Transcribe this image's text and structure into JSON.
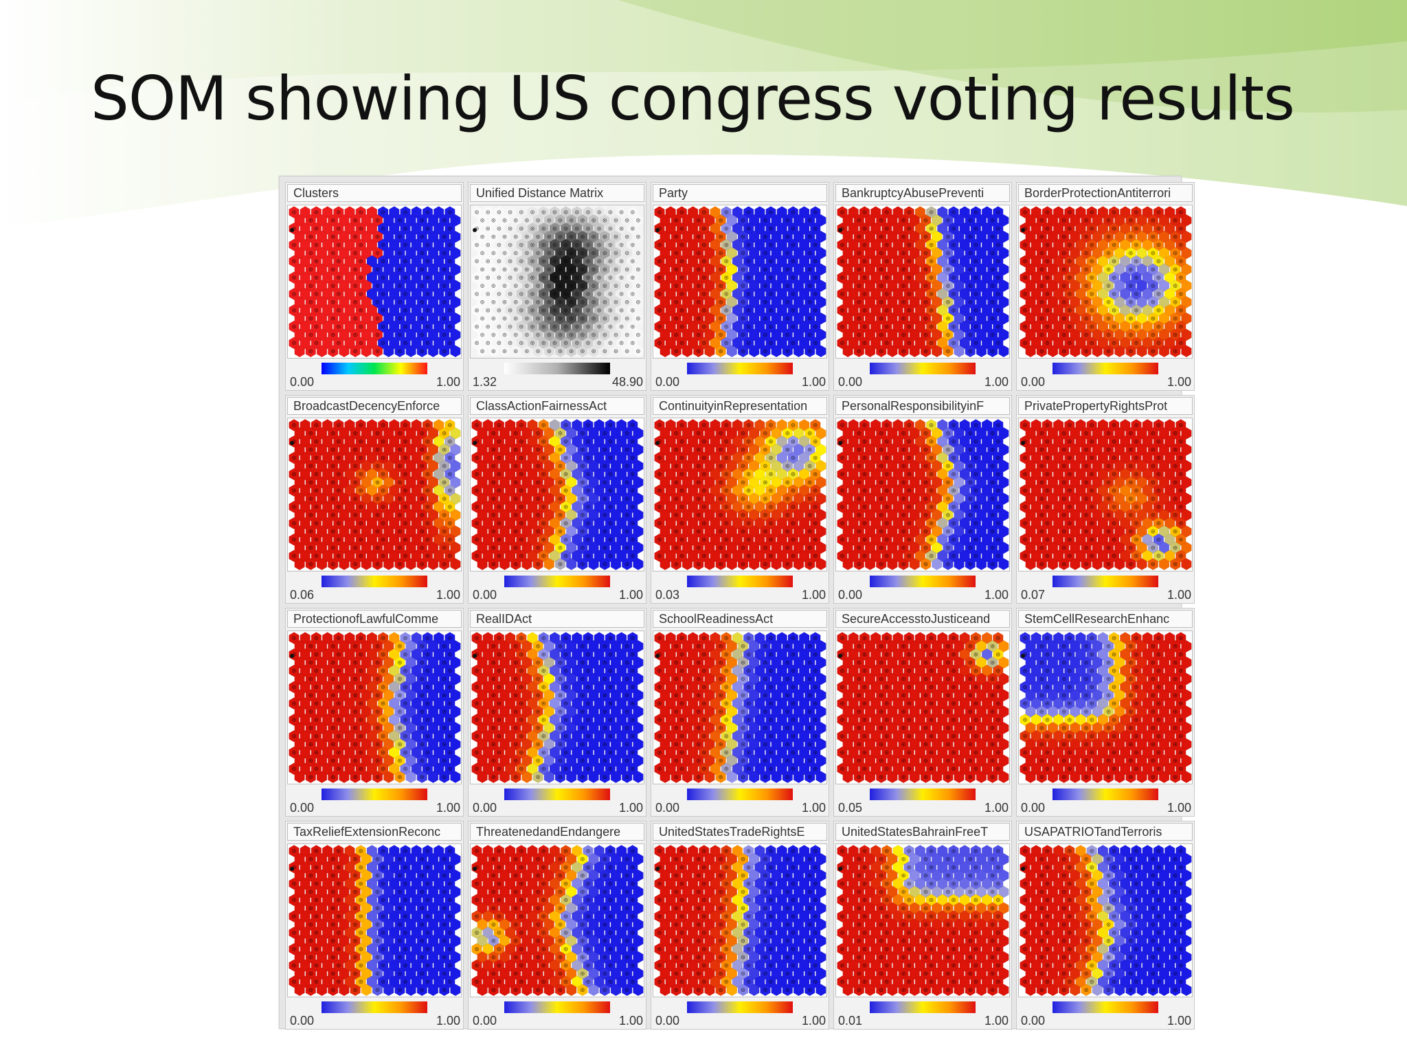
{
  "slide": {
    "title": "SOM showing US congress voting results"
  },
  "colors": {
    "title_text": "#111111",
    "background_green": "#b7d98a",
    "low": "#1a1aff",
    "mid": "#ffff00",
    "high": "#e01010"
  },
  "panels": [
    {
      "title": "Clusters",
      "min": "0.00",
      "max": "1.00",
      "scale": "rainbow"
    },
    {
      "title": "Unified Distance Matrix",
      "min": "1.32",
      "max": "48.90",
      "scale": "gray"
    },
    {
      "title": "Party",
      "min": "0.00",
      "max": "1.00",
      "scale": "heat"
    },
    {
      "title": "BankruptcyAbusePreventi",
      "min": "0.00",
      "max": "1.00",
      "scale": "heat"
    },
    {
      "title": "BorderProtectionAntiterrori",
      "min": "0.00",
      "max": "1.00",
      "scale": "heat"
    },
    {
      "title": "BroadcastDecencyEnforce",
      "min": "0.06",
      "max": "1.00",
      "scale": "heat"
    },
    {
      "title": "ClassActionFairnessAct",
      "min": "0.00",
      "max": "1.00",
      "scale": "heat"
    },
    {
      "title": "ContinuityinRepresentation",
      "min": "0.03",
      "max": "1.00",
      "scale": "heat"
    },
    {
      "title": "PersonalResponsibilityinF",
      "min": "0.00",
      "max": "1.00",
      "scale": "heat"
    },
    {
      "title": "PrivatePropertyRightsProt",
      "min": "0.07",
      "max": "1.00",
      "scale": "heat"
    },
    {
      "title": "ProtectionofLawfulComme",
      "min": "0.00",
      "max": "1.00",
      "scale": "heat"
    },
    {
      "title": "RealIDAct",
      "min": "0.00",
      "max": "1.00",
      "scale": "heat"
    },
    {
      "title": "SchoolReadinessAct",
      "min": "0.00",
      "max": "1.00",
      "scale": "heat"
    },
    {
      "title": "SecureAccesstoJusticeand",
      "min": "0.05",
      "max": "1.00",
      "scale": "heat"
    },
    {
      "title": "StemCellResearchEnhanc",
      "min": "0.00",
      "max": "1.00",
      "scale": "heat"
    },
    {
      "title": "TaxReliefExtensionReconc",
      "min": "0.00",
      "max": "1.00",
      "scale": "heat"
    },
    {
      "title": "ThreatenedandEndangere",
      "min": "0.00",
      "max": "1.00",
      "scale": "heat"
    },
    {
      "title": "UnitedStatesTradeRightsE",
      "min": "0.00",
      "max": "1.00",
      "scale": "heat"
    },
    {
      "title": "UnitedStatesBahrainFreeT",
      "min": "0.01",
      "max": "1.00",
      "scale": "heat"
    },
    {
      "title": "USAPATRIOTandTerroris",
      "min": "0.00",
      "max": "1.00",
      "scale": "heat"
    }
  ]
}
